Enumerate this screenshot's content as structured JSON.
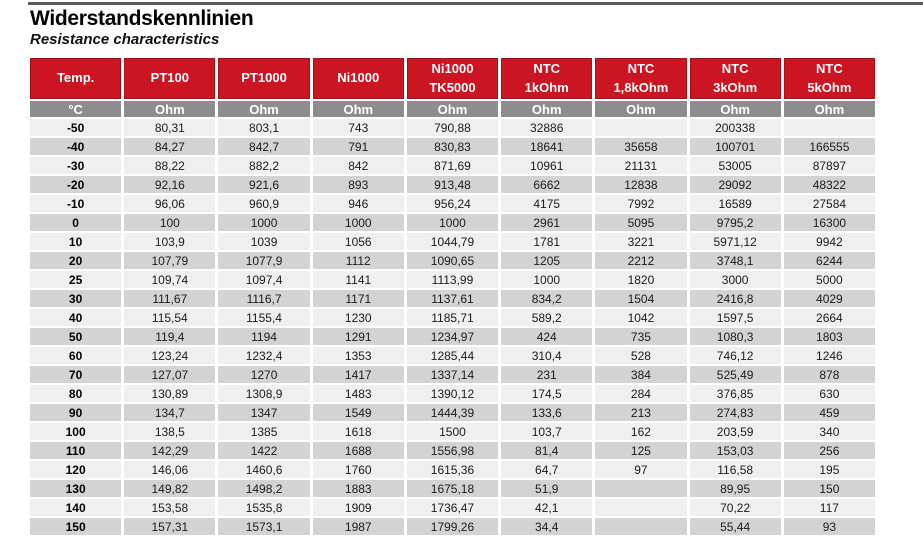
{
  "page": {
    "title": "Widerstandskennlinien",
    "subtitle": "Resistance characteristics"
  },
  "colors": {
    "header_red": "#CB1522",
    "header_red_border": "#9E1219",
    "unit_gray": "#8D8D8F",
    "row_light": "#EFEFEF",
    "row_dark": "#D3D3D4",
    "top_rule_gray": "#5A5A5C"
  },
  "table": {
    "columns": [
      {
        "label": "Temp.",
        "unit": "°C"
      },
      {
        "label": "PT100",
        "unit": "Ohm"
      },
      {
        "label": "PT1000",
        "unit": "Ohm"
      },
      {
        "label": "Ni1000",
        "unit": "Ohm"
      },
      {
        "label": "Ni1000\nTK5000",
        "unit": "Ohm"
      },
      {
        "label": "NTC\n1kOhm",
        "unit": "Ohm"
      },
      {
        "label": "NTC\n1,8kOhm",
        "unit": "Ohm"
      },
      {
        "label": "NTC\n3kOhm",
        "unit": "Ohm"
      },
      {
        "label": "NTC\n5kOhm",
        "unit": "Ohm"
      }
    ],
    "rows": [
      [
        "-50",
        "80,31",
        "803,1",
        "743",
        "790,88",
        "32886",
        "",
        "200338",
        ""
      ],
      [
        "-40",
        "84,27",
        "842,7",
        "791",
        "830,83",
        "18641",
        "35658",
        "100701",
        "166555"
      ],
      [
        "-30",
        "88,22",
        "882,2",
        "842",
        "871,69",
        "10961",
        "21131",
        "53005",
        "87897"
      ],
      [
        "-20",
        "92,16",
        "921,6",
        "893",
        "913,48",
        "6662",
        "12838",
        "29092",
        "48322"
      ],
      [
        "-10",
        "96,06",
        "960,9",
        "946",
        "956,24",
        "4175",
        "7992",
        "16589",
        "27584"
      ],
      [
        "0",
        "100",
        "1000",
        "1000",
        "1000",
        "2961",
        "5095",
        "9795,2",
        "16300"
      ],
      [
        "10",
        "103,9",
        "1039",
        "1056",
        "1044,79",
        "1781",
        "3221",
        "5971,12",
        "9942"
      ],
      [
        "20",
        "107,79",
        "1077,9",
        "1112",
        "1090,65",
        "1205",
        "2212",
        "3748,1",
        "6244"
      ],
      [
        "25",
        "109,74",
        "1097,4",
        "1141",
        "1113,99",
        "1000",
        "1820",
        "3000",
        "5000"
      ],
      [
        "30",
        "111,67",
        "1116,7",
        "1171",
        "1137,61",
        "834,2",
        "1504",
        "2416,8",
        "4029"
      ],
      [
        "40",
        "115,54",
        "1155,4",
        "1230",
        "1185,71",
        "589,2",
        "1042",
        "1597,5",
        "2664"
      ],
      [
        "50",
        "119,4",
        "1194",
        "1291",
        "1234,97",
        "424",
        "735",
        "1080,3",
        "1803"
      ],
      [
        "60",
        "123,24",
        "1232,4",
        "1353",
        "1285,44",
        "310,4",
        "528",
        "746,12",
        "1246"
      ],
      [
        "70",
        "127,07",
        "1270",
        "1417",
        "1337,14",
        "231",
        "384",
        "525,49",
        "878"
      ],
      [
        "80",
        "130,89",
        "1308,9",
        "1483",
        "1390,12",
        "174,5",
        "284",
        "376,85",
        "630"
      ],
      [
        "90",
        "134,7",
        "1347",
        "1549",
        "1444,39",
        "133,6",
        "213",
        "274,83",
        "459"
      ],
      [
        "100",
        "138,5",
        "1385",
        "1618",
        "1500",
        "103,7",
        "162",
        "203,59",
        "340"
      ],
      [
        "110",
        "142,29",
        "1422",
        "1688",
        "1556,98",
        "81,4",
        "125",
        "153,03",
        "256"
      ],
      [
        "120",
        "146,06",
        "1460,6",
        "1760",
        "1615,36",
        "64,7",
        "97",
        "116,58",
        "195"
      ],
      [
        "130",
        "149,82",
        "1498,2",
        "1883",
        "1675,18",
        "51,9",
        "",
        "89,95",
        "150"
      ],
      [
        "140",
        "153,58",
        "1535,8",
        "1909",
        "1736,47",
        "42,1",
        "",
        "70,22",
        "117"
      ],
      [
        "150",
        "157,31",
        "1573,1",
        "1987",
        "1799,26",
        "34,4",
        "",
        "55,44",
        "93"
      ]
    ]
  }
}
